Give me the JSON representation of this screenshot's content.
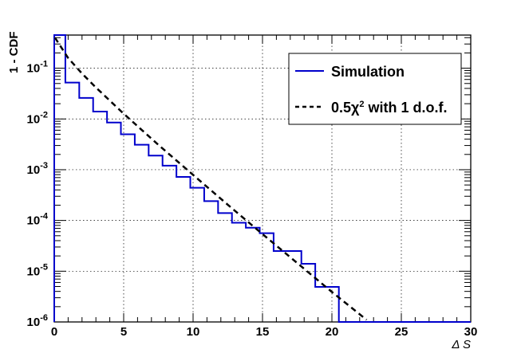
{
  "chart_data": {
    "type": "line",
    "title": "",
    "xlabel": "Δ S",
    "ylabel": "1 - CDF",
    "xlim": [
      0,
      30
    ],
    "ylim": [
      1e-06,
      0.45
    ],
    "yscale": "log",
    "grid": true,
    "legend_position": "top-right",
    "x_ticks": [
      "0",
      "5",
      "10",
      "15",
      "20",
      "25",
      "30"
    ],
    "y_ticks": [
      {
        "base": "10",
        "exp": "-6",
        "value": 1e-06
      },
      {
        "base": "10",
        "exp": "-5",
        "value": 1e-05
      },
      {
        "base": "10",
        "exp": "-4",
        "value": 0.0001
      },
      {
        "base": "10",
        "exp": "-3",
        "value": 0.001
      },
      {
        "base": "10",
        "exp": "-2",
        "value": 0.01
      },
      {
        "base": "10",
        "exp": "-1",
        "value": 0.1
      }
    ],
    "series": [
      {
        "name": "Simulation",
        "style": "step",
        "color": "#0000cc",
        "bin_edges": [
          0,
          0.8,
          1.8,
          2.8,
          3.8,
          4.8,
          5.8,
          6.8,
          7.8,
          8.8,
          9.8,
          10.8,
          11.8,
          12.8,
          13.8,
          14.8,
          15.8,
          16.8,
          17.8,
          18.8,
          19.8,
          20.5,
          30
        ],
        "values": [
          0.45,
          0.052,
          0.026,
          0.014,
          0.0085,
          0.005,
          0.0031,
          0.0019,
          0.0012,
          0.00072,
          0.00044,
          0.00024,
          0.00014,
          9e-05,
          7.2e-05,
          5.6e-05,
          2.5e-05,
          2.5e-05,
          1.4e-05,
          4.9e-06,
          4.9e-06,
          1e-06
        ]
      },
      {
        "name_prefix": "0.5χ",
        "name_sup": "2",
        "name_suffix": " with 1 d.o.f.",
        "style": "dashed",
        "color": "#000000",
        "x": [
          0.05,
          1,
          2,
          3,
          5,
          7.5,
          10,
          12.5,
          15,
          17.5,
          20,
          22.5
        ],
        "y": [
          0.4,
          0.159,
          0.0786,
          0.0417,
          0.0127,
          0.00309,
          0.00079,
          0.000204,
          5.39e-05,
          1.45e-05,
          3.9e-06,
          1.1e-06
        ]
      }
    ]
  }
}
